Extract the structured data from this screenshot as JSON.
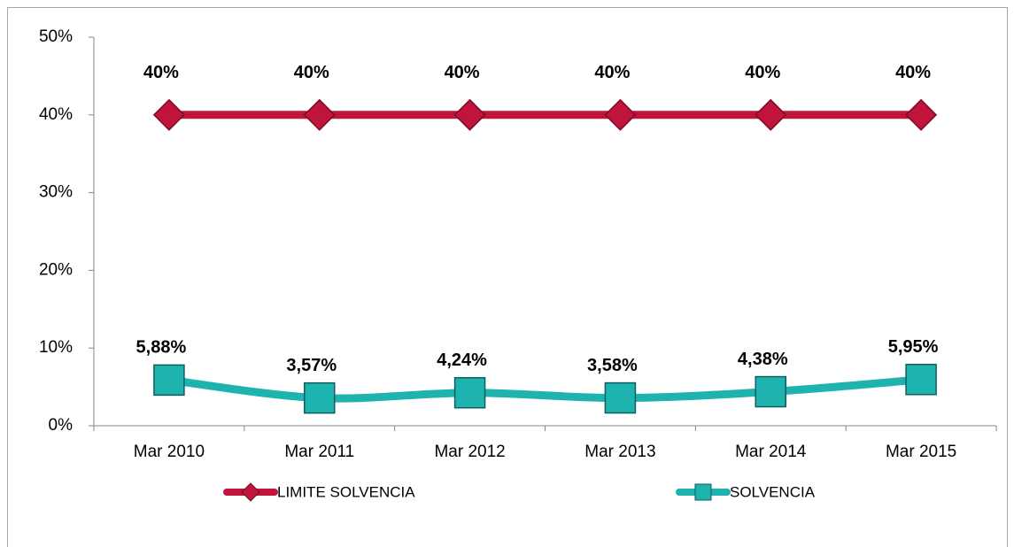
{
  "chart_data": {
    "type": "line",
    "categories": [
      "Mar 2010",
      "Mar 2011",
      "Mar 2012",
      "Mar 2013",
      "Mar 2014",
      "Mar 2015"
    ],
    "series": [
      {
        "name": "LIMITE SOLVENCIA",
        "color": "#c0143c",
        "marker": "diamond",
        "values": [
          40,
          40,
          40,
          40,
          40,
          40
        ],
        "value_labels": [
          "40%",
          "40%",
          "40%",
          "40%",
          "40%",
          "40%"
        ]
      },
      {
        "name": "SOLVENCIA",
        "color": "#1fb3b0",
        "marker": "square",
        "values": [
          5.88,
          3.57,
          4.24,
          3.58,
          4.38,
          5.95
        ],
        "value_labels": [
          "5,88%",
          "3,57%",
          "4,24%",
          "3,58%",
          "4,38%",
          "5,95%"
        ]
      }
    ],
    "ylim": [
      0,
      50
    ],
    "yticks": [
      {
        "value": 0,
        "label": "0%"
      },
      {
        "value": 10,
        "label": "10%"
      },
      {
        "value": 20,
        "label": "20%"
      },
      {
        "value": 30,
        "label": "30%"
      },
      {
        "value": 40,
        "label": "40%"
      },
      {
        "value": 50,
        "label": "50%"
      }
    ],
    "grid": false,
    "legend": "bottom"
  }
}
